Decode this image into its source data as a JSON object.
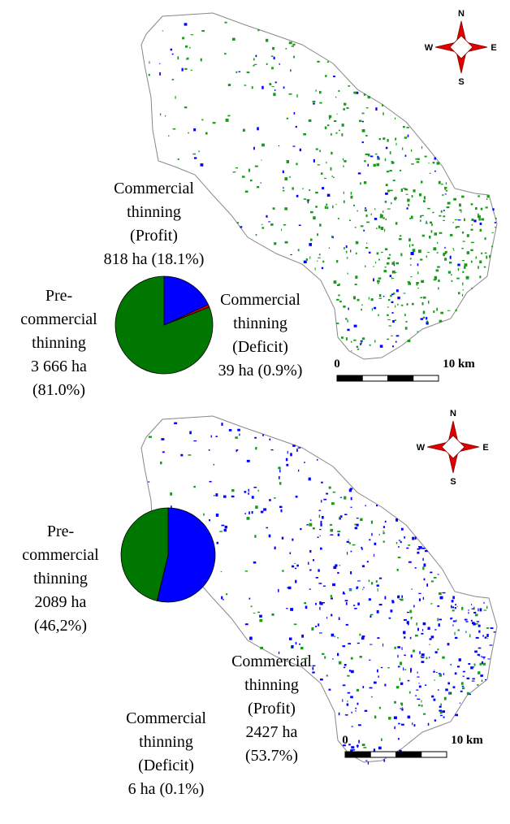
{
  "chart_data": [
    {
      "type": "pie",
      "categories": [
        "Commercial thinning (Profit)",
        "Commercial thinning (Deficit)",
        "Pre-commercial thinning"
      ],
      "values": [
        18.1,
        0.9,
        81.0
      ],
      "value_labels": [
        "818 ha (18.1%)",
        "39 ha (0.9%)",
        "3 666 ha (81.0%)"
      ],
      "colors": [
        "#0000ff",
        "#cc0000",
        "#007700"
      ]
    },
    {
      "type": "pie",
      "categories": [
        "Commercial thinning (Profit)",
        "Commercial thinning (Deficit)",
        "Pre-commercial thinning"
      ],
      "values": [
        53.7,
        0.1,
        46.2
      ],
      "value_labels": [
        "2427 ha (53.7%)",
        "6 ha (0.1%)",
        "2089 ha (46,2%)"
      ],
      "colors": [
        "#0000ff",
        "#cc0000",
        "#007700"
      ]
    }
  ],
  "maps": [
    {
      "compass": {
        "n": "N",
        "e": "E",
        "s": "S",
        "w": "W"
      },
      "scale_start": "0",
      "scale_end": "10 km"
    },
    {
      "compass": {
        "n": "N",
        "e": "E",
        "s": "S",
        "w": "W"
      },
      "scale_start": "0",
      "scale_end": "10 km"
    }
  ]
}
